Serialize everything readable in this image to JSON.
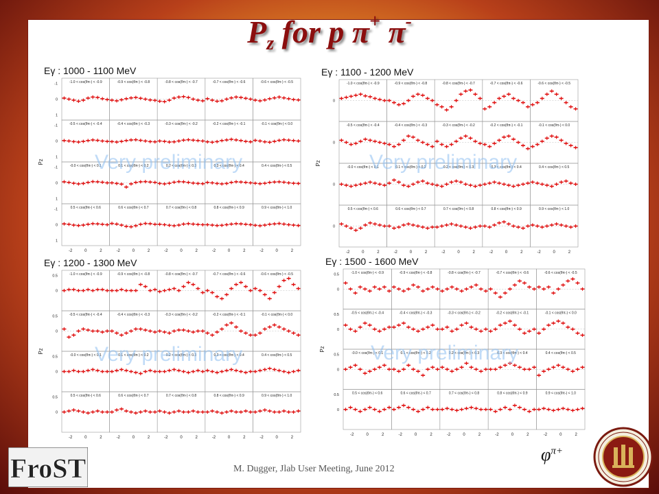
{
  "slide": {
    "title_main": "P",
    "title_sub": "z",
    "title_rest": " for p π",
    "title_sup1": "+",
    "title_mid": " π",
    "title_sup2": "-",
    "footer": "M. Dugger, Jlab User Meeting, June 2012",
    "phi_label": "φ",
    "phi_sup": "π+",
    "watermark": "Very preliminary",
    "logo_text": "FroST"
  },
  "chart_data": [
    {
      "type": "scatter",
      "title": "Eγ : 1000 - 1100 MeV",
      "ylabel": "Pz",
      "xlim": [
        -3.14,
        3.14
      ],
      "ylim": [
        -1,
        1
      ],
      "x_ticks": [
        "-2",
        "0",
        "2"
      ],
      "y_ticks": [
        "-1",
        "0",
        "1"
      ],
      "grid": "5x4",
      "bins": [
        "-1.0 < cos(θπ-) < -0.9",
        "-0.9 < cos(θπ-) < -0.8",
        "-0.8 < cos(θπ-) < -0.7",
        "-0.7 < cos(θπ-) < -0.6",
        "-0.6 < cos(θπ-) < -0.5",
        "-0.5 < cos(θπ-) < -0.4",
        "-0.4 < cos(θπ-) < -0.3",
        "-0.3 < cos(θπ-) < -0.2",
        "-0.2 < cos(θπ-) < -0.1",
        "-0.1 < cos(θπ-) < 0.0",
        "-0.0 < cos(θπ-) < 0.1",
        "0.1 < cos(θπ-) < 0.2",
        "0.2 < cos(θπ-) < 0.3",
        "0.3 < cos(θπ-) < 0.4",
        "0.4 < cos(θπ-) < 0.5",
        "0.5 < cos(θπ-) < 0.6",
        "0.6 < cos(θπ-) < 0.7",
        "0.7 < cos(θπ-) < 0.8",
        "0.8 < cos(θπ-) < 0.9",
        "0.9 < cos(θπ-) < 1.0"
      ],
      "x": [
        -2.83,
        -2.2,
        -1.57,
        -0.94,
        -0.31,
        0.31,
        0.94,
        1.57,
        2.2,
        2.83
      ],
      "cells": [
        [
          0.05,
          0.0,
          -0.05,
          -0.1,
          -0.05,
          0.05,
          0.1,
          0.08,
          0.02,
          -0.02
        ],
        [
          -0.05,
          -0.08,
          -0.03,
          0.02,
          0.06,
          0.08,
          0.04,
          0.0,
          -0.04,
          -0.06
        ],
        [
          -0.1,
          -0.12,
          -0.05,
          0.05,
          0.1,
          0.12,
          0.08,
          0.0,
          -0.05,
          -0.08
        ],
        [
          0.02,
          -0.05,
          -0.1,
          -0.08,
          0.0,
          0.06,
          0.1,
          0.08,
          0.04,
          0.0
        ],
        [
          -0.05,
          -0.08,
          -0.04,
          0.02,
          0.06,
          0.1,
          0.06,
          0.02,
          -0.02,
          -0.04
        ],
        [
          0.02,
          0.0,
          -0.03,
          -0.05,
          -0.02,
          0.02,
          0.05,
          0.03,
          0.0,
          -0.02
        ],
        [
          -0.03,
          -0.05,
          -0.02,
          0.02,
          0.05,
          0.06,
          0.03,
          0.0,
          -0.03,
          -0.04
        ],
        [
          0.0,
          -0.02,
          -0.05,
          -0.04,
          0.0,
          0.04,
          0.06,
          0.04,
          0.02,
          0.0
        ],
        [
          -0.04,
          -0.06,
          -0.03,
          0.02,
          0.05,
          0.08,
          0.05,
          0.02,
          -0.02,
          -0.04
        ],
        [
          0.03,
          0.0,
          -0.04,
          -0.06,
          -0.02,
          0.03,
          0.06,
          0.04,
          0.02,
          0.0
        ],
        [
          0.05,
          0.02,
          -0.02,
          -0.05,
          -0.03,
          0.02,
          0.06,
          0.05,
          0.03,
          0.0
        ],
        [
          0.0,
          -0.03,
          -0.06,
          -0.2,
          -0.05,
          0.02,
          0.05,
          0.06,
          0.04,
          0.02
        ],
        [
          -0.03,
          -0.05,
          -0.02,
          0.03,
          0.06,
          0.05,
          0.02,
          -0.01,
          -0.03,
          -0.04
        ],
        [
          0.02,
          0.0,
          -0.03,
          -0.05,
          -0.03,
          0.02,
          0.05,
          0.04,
          0.02,
          0.0
        ],
        [
          -0.02,
          -0.04,
          -0.02,
          0.02,
          0.04,
          0.05,
          0.03,
          0.0,
          -0.02,
          -0.03
        ],
        [
          0.04,
          0.02,
          -0.02,
          -0.04,
          -0.02,
          0.02,
          0.05,
          0.04,
          0.02,
          0.0
        ],
        [
          0.06,
          0.03,
          -0.02,
          -0.08,
          -0.1,
          -0.05,
          0.02,
          0.06,
          0.05,
          0.02
        ],
        [
          0.02,
          0.0,
          -0.03,
          -0.05,
          -0.02,
          0.03,
          0.05,
          0.03,
          0.01,
          0.0
        ],
        [
          0.0,
          -0.02,
          -0.04,
          -0.03,
          0.0,
          0.03,
          0.05,
          0.04,
          0.02,
          0.0
        ],
        [
          -0.03,
          -0.05,
          -0.02,
          0.02,
          0.04,
          0.06,
          0.03,
          0.0,
          -0.02,
          -0.04
        ]
      ]
    },
    {
      "type": "scatter",
      "title": "Eγ : 1100 - 1200 MeV",
      "ylabel": "Pz",
      "xlim": [
        -3.14,
        3.14
      ],
      "ylim": [
        -1,
        1
      ],
      "x_ticks": [
        "-2",
        "0",
        "2"
      ],
      "y_ticks": [
        "",
        "0",
        ""
      ],
      "grid": "5x4",
      "bins": [
        "-1.0 < cos(θπ-) < -0.9",
        "-0.9 < cos(θπ-) < -0.8",
        "-0.8 < cos(θπ-) < -0.7",
        "-0.7 < cos(θπ-) < -0.6",
        "-0.6 < cos(θπ-) < -0.5",
        "-0.5 < cos(θπ-) < -0.4",
        "-0.4 < cos(θπ-) < -0.3",
        "-0.3 < cos(θπ-) < -0.2",
        "-0.2 < cos(θπ-) < -0.1",
        "-0.1 < cos(θπ-) < 0.0",
        "-0.0 < cos(θπ-) < 0.1",
        "0.1 < cos(θπ-) < 0.2",
        "0.2 < cos(θπ-) < 0.3",
        "0.3 < cos(θπ-) < 0.4",
        "0.4 < cos(θπ-) < 0.5",
        "0.5 < cos(θπ-) < 0.6",
        "0.6 < cos(θπ-) < 0.7",
        "0.7 < cos(θπ-) < 0.8",
        "0.8 < cos(θπ-) < 0.9",
        "0.9 < cos(θπ-) < 1.0"
      ],
      "x": [
        -2.83,
        -2.2,
        -1.57,
        -0.94,
        -0.31,
        0.31,
        0.94,
        1.57,
        2.2,
        2.83
      ],
      "cells": [
        [
          0.1,
          0.15,
          0.2,
          0.25,
          0.3,
          0.22,
          0.18,
          0.1,
          0.05,
          0.0
        ],
        [
          0.0,
          -0.1,
          -0.2,
          -0.15,
          0.0,
          0.2,
          0.3,
          0.25,
          0.1,
          0.0
        ],
        [
          -0.2,
          -0.3,
          -0.45,
          -0.3,
          0.0,
          0.3,
          0.45,
          0.5,
          0.3,
          0.1
        ],
        [
          -0.4,
          -0.3,
          -0.1,
          0.1,
          0.2,
          0.3,
          0.1,
          0.0,
          -0.1,
          -0.3
        ],
        [
          -0.2,
          -0.1,
          0.1,
          0.3,
          0.45,
          0.3,
          0.1,
          -0.1,
          -0.3,
          -0.4
        ],
        [
          0.1,
          0.0,
          -0.1,
          -0.05,
          0.05,
          0.15,
          0.1,
          0.05,
          0.0,
          -0.05
        ],
        [
          -0.1,
          -0.2,
          -0.1,
          0.1,
          0.3,
          0.25,
          0.1,
          0.0,
          -0.1,
          -0.2
        ],
        [
          0.05,
          -0.1,
          -0.2,
          -0.1,
          0.05,
          0.2,
          0.3,
          0.2,
          0.05,
          -0.05
        ],
        [
          -0.1,
          -0.2,
          -0.05,
          0.1,
          0.25,
          0.3,
          0.15,
          0.0,
          -0.15,
          -0.3
        ],
        [
          -0.2,
          -0.1,
          0.05,
          0.2,
          0.3,
          0.25,
          0.1,
          -0.05,
          -0.15,
          -0.25
        ],
        [
          0.0,
          -0.05,
          -0.1,
          -0.05,
          0.0,
          0.05,
          0.1,
          0.05,
          0.0,
          -0.05
        ],
        [
          0.05,
          0.2,
          0.1,
          -0.05,
          -0.1,
          0.0,
          0.1,
          0.15,
          0.05,
          0.0
        ],
        [
          -0.05,
          -0.1,
          0.0,
          0.1,
          0.15,
          0.1,
          0.0,
          -0.05,
          -0.1,
          -0.05
        ],
        [
          0.0,
          0.05,
          0.1,
          0.05,
          0.0,
          -0.05,
          -0.1,
          -0.05,
          0.0,
          0.05
        ],
        [
          0.1,
          0.05,
          0.0,
          -0.05,
          -0.1,
          0.0,
          0.1,
          0.15,
          0.05,
          0.0
        ],
        [
          0.1,
          0.0,
          -0.1,
          -0.2,
          -0.1,
          0.05,
          0.15,
          0.1,
          0.05,
          0.0
        ],
        [
          0.0,
          -0.1,
          -0.05,
          0.05,
          0.1,
          0.05,
          0.0,
          -0.05,
          -0.1,
          -0.05
        ],
        [
          -0.05,
          0.0,
          0.05,
          0.1,
          0.05,
          0.0,
          -0.05,
          -0.1,
          -0.05,
          0.0
        ],
        [
          0.0,
          -0.05,
          0.05,
          0.15,
          0.2,
          0.1,
          0.0,
          -0.05,
          -0.1,
          0.0
        ],
        [
          0.05,
          0.0,
          -0.05,
          0.0,
          0.05,
          0.1,
          0.05,
          0.0,
          -0.05,
          0.0
        ]
      ]
    },
    {
      "type": "scatter",
      "title": "Eγ : 1200 - 1300 MeV",
      "ylabel": "Pz",
      "xlim": [
        -3.14,
        3.14
      ],
      "ylim": [
        -1,
        1
      ],
      "x_ticks": [
        "-2",
        "0",
        "2"
      ],
      "y_ticks": [
        "0.5",
        "0",
        ""
      ],
      "grid": "5x4",
      "bins": [
        "-1.0 < cos(θπ-) < -0.9",
        "-0.9 < cos(θπ-) < -0.8",
        "-0.8 < cos(θπ-) < -0.7",
        "-0.7 < cos(θπ-) < -0.6",
        "-0.6 < cos(θπ-) < -0.5",
        "-0.5 < cos(θπ-) < -0.4",
        "-0.4 < cos(θπ-) < -0.3",
        "-0.3 < cos(θπ-) < -0.2",
        "-0.2 < cos(θπ-) < -0.1",
        "-0.1 < cos(θπ-) < 0.0",
        "-0.0 < cos(θπ-) < 0.1",
        "0.1 < cos(θπ-) < 0.2",
        "0.2 < cos(θπ-) < 0.3",
        "0.3 < cos(θπ-) < 0.4",
        "0.4 < cos(θπ-) < 0.5",
        "0.5 < cos(θπ-) < 0.6",
        "0.6 < cos(θπ-) < 0.7",
        "0.7 < cos(θπ-) < 0.8",
        "0.8 < cos(θπ-) < 0.9",
        "0.9 < cos(θπ-) < 1.0"
      ],
      "x": [
        -2.83,
        -2.2,
        -1.57,
        -0.94,
        -0.31,
        0.31,
        0.94,
        1.57,
        2.2,
        2.83
      ],
      "cells": [
        [
          0.0,
          0.05,
          0.05,
          0.0,
          0.0,
          0.05,
          0.0,
          0.05,
          0.05,
          0.0
        ],
        [
          0.0,
          0.0,
          0.05,
          0.0,
          0.0,
          0.0,
          0.3,
          0.2,
          0.0,
          0.05
        ],
        [
          -0.05,
          0.0,
          0.05,
          0.1,
          0.0,
          0.2,
          0.4,
          0.3,
          0.1,
          -0.1
        ],
        [
          0.0,
          -0.1,
          -0.3,
          -0.4,
          -0.2,
          0.1,
          0.3,
          0.4,
          0.2,
          0.0
        ],
        [
          0.1,
          0.0,
          -0.2,
          -0.4,
          -0.1,
          0.2,
          0.5,
          0.6,
          0.3,
          0.1
        ],
        [
          0.1,
          -0.3,
          -0.2,
          0.0,
          0.1,
          0.05,
          0.0,
          0.0,
          -0.05,
          0.0
        ],
        [
          0.0,
          -0.1,
          -0.2,
          -0.1,
          0.0,
          0.1,
          0.1,
          0.05,
          0.0,
          -0.05
        ],
        [
          0.0,
          -0.05,
          -0.1,
          0.0,
          0.05,
          0.05,
          0.0,
          -0.05,
          0.0,
          0.0
        ],
        [
          -0.1,
          -0.2,
          -0.05,
          0.1,
          0.3,
          0.4,
          0.2,
          0.0,
          -0.1,
          -0.2
        ],
        [
          -0.2,
          -0.1,
          0.1,
          0.2,
          0.3,
          0.2,
          0.1,
          0.0,
          -0.1,
          -0.2
        ],
        [
          0.0,
          0.0,
          0.05,
          0.0,
          0.0,
          0.05,
          0.1,
          0.05,
          0.0,
          0.0
        ],
        [
          0.0,
          0.05,
          0.1,
          0.05,
          0.0,
          -0.05,
          -0.1,
          0.0,
          0.05,
          0.0
        ],
        [
          0.0,
          0.0,
          0.05,
          0.1,
          0.05,
          0.0,
          -0.05,
          0.0,
          0.05,
          0.0
        ],
        [
          0.05,
          0.0,
          -0.05,
          0.0,
          0.05,
          0.1,
          0.05,
          0.0,
          -0.05,
          0.0
        ],
        [
          0.0,
          0.05,
          0.1,
          0.15,
          0.1,
          0.05,
          0.0,
          -0.05,
          0.0,
          0.05
        ],
        [
          0.0,
          0.05,
          0.1,
          0.05,
          0.0,
          -0.05,
          0.0,
          0.05,
          0.0,
          0.0
        ],
        [
          0.0,
          0.1,
          0.15,
          0.05,
          0.0,
          -0.05,
          0.0,
          0.05,
          0.0,
          0.0
        ],
        [
          0.05,
          0.0,
          -0.05,
          0.0,
          0.05,
          0.0,
          0.0,
          0.05,
          0.0,
          0.0
        ],
        [
          0.0,
          0.05,
          0.0,
          -0.05,
          0.0,
          0.05,
          0.0,
          0.0,
          0.05,
          0.0
        ],
        [
          0.0,
          0.05,
          0.1,
          0.05,
          0.0,
          0.0,
          0.05,
          0.0,
          0.0,
          0.05
        ]
      ]
    },
    {
      "type": "scatter",
      "title": "Eγ : 1500 - 1600 MeV",
      "ylabel": "Pz",
      "xlim": [
        -3.14,
        3.14
      ],
      "ylim": [
        -1,
        1
      ],
      "x_ticks": [
        "-2",
        "0",
        "2"
      ],
      "y_ticks": [
        "0.5",
        "0",
        ""
      ],
      "grid": "5x4",
      "bins": [
        "-1.0 < cos(θπ-) < -0.9",
        "-0.9 < cos(θπ-) < -0.8",
        "-0.8 < cos(θπ-) < -0.7",
        "-0.7 < cos(θπ-) < -0.6",
        "-0.6 < cos(θπ-) < -0.5",
        "-0.5 < cos(θπ-) < -0.4",
        "-0.4 < cos(θπ-) < -0.3",
        "-0.3 < cos(θπ-) < -0.2",
        "-0.2 < cos(θπ-) < -0.1",
        "-0.1 < cos(θπ-) < 0.0",
        "-0.0 < cos(θπ-) < 0.1",
        "0.1 < cos(θπ-) < 0.2",
        "0.2 < cos(θπ-) < 0.3",
        "0.3 < cos(θπ-) < 0.4",
        "0.4 < cos(θπ-) < 0.5",
        "0.5 < cos(θπ-) < 0.6",
        "0.6 < cos(θπ-) < 0.7",
        "0.7 < cos(θπ-) < 0.8",
        "0.8 < cos(θπ-) < 0.9",
        "0.9 < cos(θπ-) < 1.0"
      ],
      "x": [
        -2.83,
        -2.2,
        -1.57,
        -0.94,
        -0.31,
        0.31,
        0.94,
        1.57,
        2.2,
        2.83
      ],
      "cells": [
        [
          0.3,
          0.0,
          -0.2,
          0.1,
          0.0,
          -0.1,
          0.1,
          0.0,
          0.1,
          -0.1
        ],
        [
          0.1,
          0.0,
          -0.1,
          0.0,
          0.2,
          0.1,
          -0.1,
          0.0,
          0.1,
          0.0
        ],
        [
          -0.1,
          0.0,
          0.1,
          0.0,
          -0.1,
          0.0,
          0.1,
          0.2,
          0.0,
          -0.1
        ],
        [
          0.0,
          -0.2,
          -0.4,
          -0.2,
          0.0,
          0.2,
          0.4,
          0.3,
          0.1,
          0.0
        ],
        [
          0.1,
          0.0,
          0.1,
          -0.2,
          0.0,
          0.2,
          0.4,
          0.5,
          0.3,
          0.0
        ],
        [
          0.2,
          0.0,
          -0.1,
          0.1,
          0.3,
          0.2,
          0.0,
          -0.1,
          0.0,
          0.1
        ],
        [
          0.1,
          0.2,
          0.3,
          0.1,
          0.0,
          -0.1,
          0.0,
          0.1,
          0.2,
          0.0
        ],
        [
          0.0,
          0.1,
          -0.1,
          0.0,
          0.2,
          0.3,
          0.1,
          0.0,
          -0.1,
          0.0
        ],
        [
          -0.1,
          0.0,
          0.2,
          0.3,
          0.4,
          0.2,
          0.0,
          -0.2,
          -0.1,
          0.0
        ],
        [
          -0.2,
          0.0,
          0.2,
          0.3,
          0.4,
          0.3,
          0.1,
          0.0,
          -0.2,
          -0.3
        ],
        [
          0.0,
          0.1,
          0.2,
          0.0,
          -0.2,
          -0.1,
          0.0,
          0.1,
          0.2,
          0.0
        ],
        [
          0.0,
          -0.1,
          0.0,
          0.2,
          0.0,
          -0.1,
          -0.3,
          0.0,
          0.1,
          0.0
        ],
        [
          0.1,
          0.0,
          -0.1,
          0.0,
          0.1,
          0.3,
          0.1,
          0.0,
          -0.1,
          0.0
        ],
        [
          0.0,
          0.0,
          0.1,
          0.2,
          0.3,
          0.2,
          0.1,
          0.0,
          0.0,
          0.1
        ],
        [
          -0.3,
          -0.1,
          0.0,
          0.1,
          0.2,
          0.1,
          0.0,
          -0.1,
          0.0,
          0.1
        ],
        [
          0.0,
          0.1,
          0.0,
          -0.1,
          0.0,
          0.1,
          0.0,
          -0.1,
          0.0,
          0.1
        ],
        [
          0.0,
          0.1,
          0.2,
          0.1,
          0.0,
          -0.1,
          0.0,
          0.1,
          0.0,
          0.0
        ],
        [
          0.0,
          0.05,
          0.0,
          -0.05,
          0.0,
          0.05,
          0.1,
          0.05,
          0.0,
          0.0
        ],
        [
          0.0,
          -0.1,
          0.0,
          0.1,
          0.0,
          0.2,
          0.1,
          0.0,
          -0.1,
          0.0
        ],
        [
          0.0,
          0.05,
          0.0,
          -0.05,
          0.0,
          0.05,
          0.0,
          -0.05,
          0.0,
          0.05
        ]
      ]
    }
  ]
}
